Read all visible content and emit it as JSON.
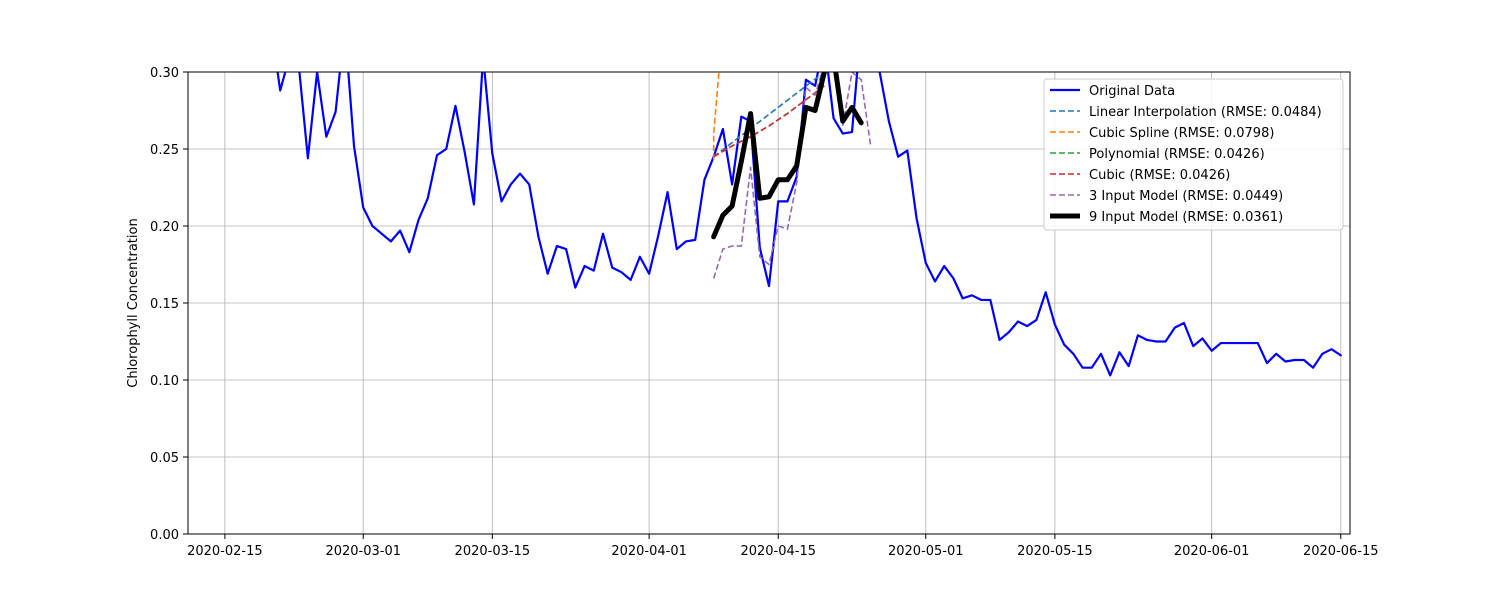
{
  "chart_data": {
    "type": "line",
    "title": "",
    "xlabel": "",
    "ylabel": "Chlorophyll Concentration",
    "xlim": [
      "2020-02-11",
      "2020-06-16"
    ],
    "ylim": [
      0,
      0.3
    ],
    "grid": true,
    "legend_position": "top-right",
    "x_ticks": [
      "2020-02-15",
      "2020-03-01",
      "2020-03-15",
      "2020-04-01",
      "2020-04-15",
      "2020-05-01",
      "2020-05-15",
      "2020-06-01",
      "2020-06-15"
    ],
    "y_ticks": [
      "0.00",
      "0.05",
      "0.10",
      "0.15",
      "0.20",
      "0.25",
      "0.30"
    ],
    "series": [
      {
        "name": "Original Data",
        "color": "#0000ff",
        "style": "solid",
        "width": 2.2,
        "points": [
          [
            "2020-02-20",
            0.33
          ],
          [
            "2020-02-21",
            0.288
          ],
          [
            "2020-02-22",
            0.31
          ],
          [
            "2020-02-23",
            0.305
          ],
          [
            "2020-02-24",
            0.244
          ],
          [
            "2020-02-25",
            0.3
          ],
          [
            "2020-02-26",
            0.258
          ],
          [
            "2020-02-27",
            0.274
          ],
          [
            "2020-02-28",
            0.33
          ],
          [
            "2020-02-29",
            0.252
          ],
          [
            "2020-03-01",
            0.212
          ],
          [
            "2020-03-02",
            0.2
          ],
          [
            "2020-03-04",
            0.19
          ],
          [
            "2020-03-05",
            0.197
          ],
          [
            "2020-03-06",
            0.183
          ],
          [
            "2020-03-07",
            0.204
          ],
          [
            "2020-03-08",
            0.218
          ],
          [
            "2020-03-09",
            0.246
          ],
          [
            "2020-03-10",
            0.25
          ],
          [
            "2020-03-11",
            0.278
          ],
          [
            "2020-03-12",
            0.248
          ],
          [
            "2020-03-13",
            0.214
          ],
          [
            "2020-03-14",
            0.31
          ],
          [
            "2020-03-15",
            0.247
          ],
          [
            "2020-03-16",
            0.216
          ],
          [
            "2020-03-17",
            0.227
          ],
          [
            "2020-03-18",
            0.234
          ],
          [
            "2020-03-19",
            0.227
          ],
          [
            "2020-03-20",
            0.193
          ],
          [
            "2020-03-21",
            0.169
          ],
          [
            "2020-03-22",
            0.187
          ],
          [
            "2020-03-23",
            0.185
          ],
          [
            "2020-03-24",
            0.16
          ],
          [
            "2020-03-25",
            0.174
          ],
          [
            "2020-03-26",
            0.171
          ],
          [
            "2020-03-27",
            0.195
          ],
          [
            "2020-03-28",
            0.173
          ],
          [
            "2020-03-29",
            0.17
          ],
          [
            "2020-03-30",
            0.165
          ],
          [
            "2020-03-31",
            0.18
          ],
          [
            "2020-04-01",
            0.169
          ],
          [
            "2020-04-02",
            0.194
          ],
          [
            "2020-04-03",
            0.222
          ],
          [
            "2020-04-04",
            0.185
          ],
          [
            "2020-04-05",
            0.19
          ],
          [
            "2020-04-06",
            0.191
          ],
          [
            "2020-04-07",
            0.23
          ],
          [
            "2020-04-08",
            0.245
          ],
          [
            "2020-04-09",
            0.263
          ],
          [
            "2020-04-10",
            0.227
          ],
          [
            "2020-04-11",
            0.271
          ],
          [
            "2020-04-12",
            0.268
          ],
          [
            "2020-04-13",
            0.186
          ],
          [
            "2020-04-14",
            0.161
          ],
          [
            "2020-04-15",
            0.216
          ],
          [
            "2020-04-16",
            0.216
          ],
          [
            "2020-04-17",
            0.232
          ],
          [
            "2020-04-18",
            0.295
          ],
          [
            "2020-04-19",
            0.291
          ],
          [
            "2020-04-20",
            0.32
          ],
          [
            "2020-04-21",
            0.27
          ],
          [
            "2020-04-22",
            0.26
          ],
          [
            "2020-04-23",
            0.261
          ],
          [
            "2020-04-24",
            0.33
          ],
          [
            "2020-04-25",
            0.33
          ],
          [
            "2020-04-26",
            0.3
          ],
          [
            "2020-04-27",
            0.268
          ],
          [
            "2020-04-28",
            0.245
          ],
          [
            "2020-04-29",
            0.249
          ],
          [
            "2020-04-30",
            0.205
          ],
          [
            "2020-05-01",
            0.176
          ],
          [
            "2020-05-02",
            0.164
          ],
          [
            "2020-05-03",
            0.174
          ],
          [
            "2020-05-04",
            0.166
          ],
          [
            "2020-05-05",
            0.153
          ],
          [
            "2020-05-06",
            0.155
          ],
          [
            "2020-05-07",
            0.152
          ],
          [
            "2020-05-08",
            0.152
          ],
          [
            "2020-05-09",
            0.126
          ],
          [
            "2020-05-10",
            0.131
          ],
          [
            "2020-05-11",
            0.138
          ],
          [
            "2020-05-12",
            0.135
          ],
          [
            "2020-05-13",
            0.139
          ],
          [
            "2020-05-14",
            0.157
          ],
          [
            "2020-05-15",
            0.136
          ],
          [
            "2020-05-16",
            0.123
          ],
          [
            "2020-05-17",
            0.117
          ],
          [
            "2020-05-18",
            0.108
          ],
          [
            "2020-05-19",
            0.108
          ],
          [
            "2020-05-20",
            0.117
          ],
          [
            "2020-05-21",
            0.103
          ],
          [
            "2020-05-22",
            0.118
          ],
          [
            "2020-05-23",
            0.109
          ],
          [
            "2020-05-24",
            0.129
          ],
          [
            "2020-05-25",
            0.126
          ],
          [
            "2020-05-26",
            0.125
          ],
          [
            "2020-05-27",
            0.125
          ],
          [
            "2020-05-28",
            0.134
          ],
          [
            "2020-05-29",
            0.137
          ],
          [
            "2020-05-30",
            0.122
          ],
          [
            "2020-05-31",
            0.127
          ],
          [
            "2020-06-01",
            0.119
          ],
          [
            "2020-06-02",
            0.124
          ],
          [
            "2020-06-03",
            0.124
          ],
          [
            "2020-06-04",
            0.124
          ],
          [
            "2020-06-05",
            0.124
          ],
          [
            "2020-06-06",
            0.124
          ],
          [
            "2020-06-07",
            0.111
          ],
          [
            "2020-06-08",
            0.117
          ],
          [
            "2020-06-09",
            0.112
          ],
          [
            "2020-06-10",
            0.113
          ],
          [
            "2020-06-11",
            0.113
          ],
          [
            "2020-06-12",
            0.108
          ],
          [
            "2020-06-13",
            0.117
          ],
          [
            "2020-06-14",
            0.12
          ],
          [
            "2020-06-15",
            0.116
          ]
        ]
      },
      {
        "name": "Linear Interpolation (RMSE: 0.0484)",
        "color": "#1f77b4",
        "style": "dashed",
        "width": 1.6,
        "points": [
          [
            "2020-04-08",
            0.245
          ],
          [
            "2020-04-20",
            0.3
          ]
        ]
      },
      {
        "name": "Cubic Spline (RMSE: 0.0798)",
        "color": "#ff7f0e",
        "style": "dashed",
        "width": 1.6,
        "points": [
          [
            "2020-04-08",
            0.243
          ],
          [
            "2020-04-08",
            0.26
          ],
          [
            "2020-04-09",
            0.33
          ]
        ]
      },
      {
        "name": "Polynomial (RMSE: 0.0426)",
        "color": "#2ca02c",
        "style": "dashed",
        "width": 1.6,
        "points": [
          [
            "2020-04-08",
            0.245
          ],
          [
            "2020-04-10",
            0.252
          ],
          [
            "2020-04-12",
            0.258
          ],
          [
            "2020-04-14",
            0.265
          ],
          [
            "2020-04-16",
            0.273
          ],
          [
            "2020-04-18",
            0.282
          ],
          [
            "2020-04-20",
            0.291
          ]
        ]
      },
      {
        "name": "Cubic (RMSE: 0.0426)",
        "color": "#d62728",
        "style": "dashed",
        "width": 1.6,
        "points": [
          [
            "2020-04-08",
            0.245
          ],
          [
            "2020-04-10",
            0.252
          ],
          [
            "2020-04-12",
            0.258
          ],
          [
            "2020-04-14",
            0.265
          ],
          [
            "2020-04-16",
            0.273
          ],
          [
            "2020-04-18",
            0.282
          ],
          [
            "2020-04-20",
            0.291
          ]
        ]
      },
      {
        "name": "3 Input Model (RMSE: 0.0449)",
        "color": "#9467bd",
        "style": "dashed",
        "width": 1.6,
        "points": [
          [
            "2020-04-08",
            0.166
          ],
          [
            "2020-04-09",
            0.185
          ],
          [
            "2020-04-10",
            0.187
          ],
          [
            "2020-04-11",
            0.187
          ],
          [
            "2020-04-12",
            0.238
          ],
          [
            "2020-04-13",
            0.18
          ],
          [
            "2020-04-14",
            0.175
          ],
          [
            "2020-04-15",
            0.2
          ],
          [
            "2020-04-16",
            0.198
          ],
          [
            "2020-04-17",
            0.228
          ],
          [
            "2020-04-18",
            0.29
          ],
          [
            "2020-04-19",
            0.285
          ],
          [
            "2020-04-20",
            0.305
          ],
          [
            "2020-04-21",
            0.31
          ],
          [
            "2020-04-22",
            0.265
          ],
          [
            "2020-04-23",
            0.3
          ],
          [
            "2020-04-24",
            0.295
          ],
          [
            "2020-04-25",
            0.253
          ]
        ]
      },
      {
        "name": "9 Input Model (RMSE: 0.0361)",
        "color": "#000000",
        "style": "solid",
        "width": 5,
        "points": [
          [
            "2020-04-08",
            0.193
          ],
          [
            "2020-04-09",
            0.207
          ],
          [
            "2020-04-10",
            0.213
          ],
          [
            "2020-04-11",
            0.242
          ],
          [
            "2020-04-12",
            0.273
          ],
          [
            "2020-04-13",
            0.218
          ],
          [
            "2020-04-14",
            0.219
          ],
          [
            "2020-04-15",
            0.23
          ],
          [
            "2020-04-16",
            0.23
          ],
          [
            "2020-04-17",
            0.239
          ],
          [
            "2020-04-18",
            0.277
          ],
          [
            "2020-04-19",
            0.275
          ],
          [
            "2020-04-20",
            0.3
          ],
          [
            "2020-04-21",
            0.31
          ],
          [
            "2020-04-22",
            0.268
          ],
          [
            "2020-04-23",
            0.277
          ],
          [
            "2020-04-24",
            0.267
          ]
        ]
      }
    ]
  }
}
